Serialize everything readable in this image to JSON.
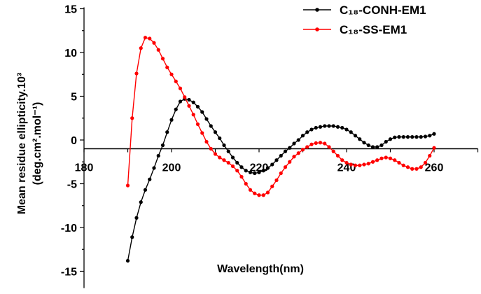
{
  "chart_data": {
    "type": "line",
    "title": "",
    "xlabel": "Wavelength(nm)",
    "ylabel_line1": "Mean residue ellipticity.10³",
    "ylabel_line2": "(deg.cm².mol⁻¹)",
    "xlim": [
      180,
      270
    ],
    "ylim": [
      -15,
      15
    ],
    "x_axis_crosses_y_at": -1,
    "x_ticks": [
      180,
      190,
      200,
      210,
      220,
      230,
      240,
      250,
      260,
      270
    ],
    "x_tick_labels": [
      "180",
      "200",
      "220",
      "240",
      "260"
    ],
    "y_tick_labels": [
      "15",
      "10",
      "5",
      "0",
      "-5",
      "-10",
      "-15"
    ],
    "grid": false,
    "legend_position": "top-right",
    "x": [
      190,
      191,
      192,
      193,
      194,
      195,
      196,
      197,
      198,
      199,
      200,
      201,
      202,
      203,
      204,
      205,
      206,
      207,
      208,
      209,
      210,
      211,
      212,
      213,
      214,
      215,
      216,
      217,
      218,
      219,
      220,
      221,
      222,
      223,
      224,
      225,
      226,
      227,
      228,
      229,
      230,
      231,
      232,
      233,
      234,
      235,
      236,
      237,
      238,
      239,
      240,
      241,
      242,
      243,
      244,
      245,
      246,
      247,
      248,
      249,
      250,
      251,
      252,
      253,
      254,
      255,
      256,
      257,
      258,
      259,
      260
    ],
    "series": [
      {
        "name": "C₁₈-CONH-EM1",
        "color": "#000000",
        "values": [
          -13.8,
          -11.1,
          -8.9,
          -7.1,
          -5.7,
          -4.5,
          -3.2,
          -1.8,
          -0.6,
          0.9,
          2.3,
          3.5,
          4.4,
          4.7,
          4.6,
          4.3,
          3.8,
          3.2,
          2.4,
          1.6,
          0.9,
          0.2,
          -0.6,
          -1.3,
          -2.0,
          -2.6,
          -3.1,
          -3.5,
          -3.7,
          -3.8,
          -3.7,
          -3.5,
          -3.2,
          -2.8,
          -2.3,
          -1.8,
          -1.3,
          -0.9,
          -0.4,
          0.0,
          0.5,
          0.9,
          1.2,
          1.4,
          1.5,
          1.6,
          1.6,
          1.6,
          1.5,
          1.4,
          1.2,
          0.9,
          0.5,
          0.1,
          -0.3,
          -0.6,
          -0.8,
          -0.8,
          -0.6,
          -0.2,
          0.1,
          0.3,
          0.35,
          0.35,
          0.35,
          0.35,
          0.35,
          0.35,
          0.4,
          0.5,
          0.7
        ]
      },
      {
        "name": "C₁₈-SS-EM1",
        "color": "#ff0000",
        "values": [
          -5.2,
          2.5,
          7.6,
          10.5,
          11.7,
          11.6,
          11.1,
          10.3,
          9.3,
          8.3,
          7.5,
          6.7,
          5.9,
          4.9,
          3.9,
          2.9,
          1.8,
          0.8,
          -0.2,
          -1.0,
          -1.6,
          -2.0,
          -2.3,
          -2.6,
          -3.0,
          -3.5,
          -4.2,
          -5.0,
          -5.7,
          -6.1,
          -6.3,
          -6.3,
          -6.0,
          -5.3,
          -4.6,
          -3.8,
          -3.1,
          -2.5,
          -1.9,
          -1.5,
          -1.1,
          -0.8,
          -0.5,
          -0.35,
          -0.3,
          -0.4,
          -0.8,
          -1.3,
          -1.8,
          -2.3,
          -2.6,
          -2.8,
          -2.9,
          -2.9,
          -2.8,
          -2.7,
          -2.5,
          -2.3,
          -2.1,
          -2.0,
          -2.1,
          -2.3,
          -2.6,
          -2.9,
          -3.1,
          -3.3,
          -3.3,
          -3.1,
          -2.6,
          -1.8,
          -0.9
        ]
      }
    ]
  }
}
